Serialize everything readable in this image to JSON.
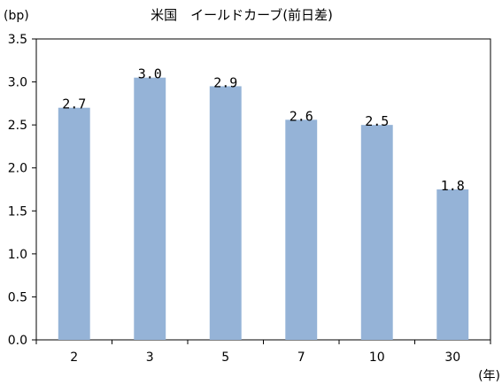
{
  "chart_data": {
    "type": "bar",
    "title": "米国　イールドカーブ(前日差)",
    "ylabel": "(bp)",
    "xlabel": "(年)",
    "categories": [
      "2",
      "3",
      "5",
      "7",
      "10",
      "30"
    ],
    "values": [
      2.7,
      3.05,
      2.95,
      2.56,
      2.5,
      1.75
    ],
    "data_labels": [
      "2.7",
      "3.0",
      "2.9",
      "2.6",
      "2.5",
      "1.8"
    ],
    "y_ticks": [
      "0.0",
      "0.5",
      "1.0",
      "1.5",
      "2.0",
      "2.5",
      "3.0",
      "3.5"
    ],
    "ylim": [
      0,
      3.5
    ],
    "grid": false,
    "legend": "none",
    "colors": {
      "bar": "#95b3d7",
      "axis": "#000000",
      "text": "#000000"
    }
  }
}
